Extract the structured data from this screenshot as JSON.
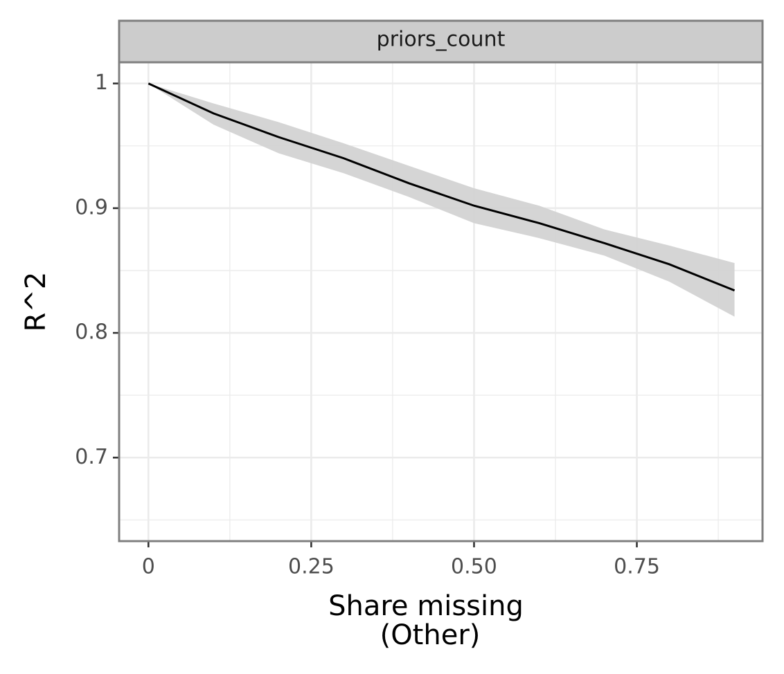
{
  "chart_data": {
    "type": "line",
    "facet": "priors_count",
    "xlabel": [
      "Share missing",
      "(Other)"
    ],
    "ylabel": "R^2",
    "x": [
      0,
      0.1,
      0.2,
      0.3,
      0.4,
      0.5,
      0.6,
      0.7,
      0.8,
      0.9
    ],
    "values": [
      1.0,
      0.976,
      0.957,
      0.94,
      0.92,
      0.902,
      0.888,
      0.872,
      0.855,
      0.834
    ],
    "band": {
      "lower": [
        1.0,
        0.967,
        0.944,
        0.928,
        0.909,
        0.888,
        0.876,
        0.862,
        0.841,
        0.813
      ],
      "upper": [
        1.0,
        0.984,
        0.969,
        0.952,
        0.934,
        0.916,
        0.902,
        0.883,
        0.87,
        0.856
      ]
    },
    "color": "#000000",
    "band_color": "#d3d3d3",
    "xlim": [
      -0.045,
      0.943
    ],
    "ylim": [
      0.633,
      1.017
    ],
    "xticks": [
      0,
      0.25,
      {
        "value": 0.5,
        "label": "0.50"
      },
      0.75
    ],
    "yticks": [
      0.7,
      0.8,
      0.9,
      1
    ],
    "minor_xticks": [
      0.125,
      0.375,
      0.625,
      0.875
    ],
    "minor_yticks": [
      0.65,
      0.75,
      0.85,
      0.95
    ],
    "grid": true
  }
}
